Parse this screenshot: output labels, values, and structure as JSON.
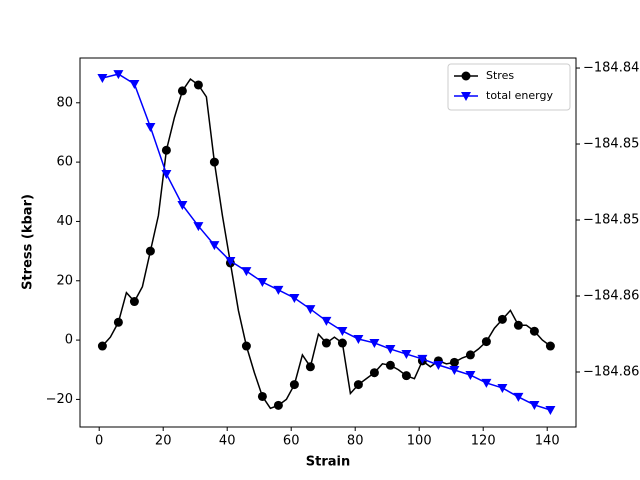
{
  "chart_data": {
    "type": "line",
    "xlabel": "Strain",
    "ylabel": "Stress (kbar)",
    "xlim": [
      -6,
      149
    ],
    "ylim": [
      -29.3,
      95.1
    ],
    "y2lim": [
      -184.86862,
      -184.84434
    ],
    "xticks": [
      0,
      20,
      40,
      60,
      80,
      100,
      120,
      140
    ],
    "yticks": [
      {
        "value": -20,
        "label": "−20"
      },
      0,
      20,
      40,
      60,
      80
    ],
    "y2ticks": [
      {
        "value": -184.845,
        "label": "−184.84"
      },
      {
        "value": -184.85,
        "label": "−184.85"
      },
      {
        "value": -184.855,
        "label": "−184.85"
      },
      {
        "value": -184.86,
        "label": "−184.86"
      },
      {
        "value": -184.865,
        "label": "−184.86"
      }
    ],
    "legend": "upper right",
    "series": [
      {
        "name": "Stres",
        "color": "#000000",
        "marker": "circle",
        "markevery": 2,
        "x": [
          1,
          3.5,
          6,
          8.5,
          11,
          13.5,
          16,
          18.5,
          21,
          23.5,
          26,
          28.5,
          31,
          33.5,
          36,
          38.5,
          41,
          43.5,
          46,
          48.5,
          51,
          53.5,
          56,
          58.5,
          61,
          63.5,
          66,
          68.5,
          71,
          73.5,
          76,
          78.5,
          81,
          83.5,
          86,
          88.5,
          91,
          93.5,
          96,
          98.5,
          101,
          103.5,
          106,
          108.5,
          111,
          113.5,
          116,
          118.5,
          121,
          123.5,
          126,
          128.5,
          131,
          133.5,
          136,
          138.5,
          141
        ],
        "values": [
          -2,
          1,
          6,
          16,
          13,
          18,
          30,
          42,
          64,
          75,
          84,
          88,
          86,
          82,
          60,
          42,
          26,
          10,
          -2,
          -11,
          -19,
          -23,
          -22,
          -20,
          -15,
          -5,
          -9,
          2,
          -1,
          1,
          -1,
          -18,
          -15,
          -13,
          -11,
          -8,
          -8.5,
          -10,
          -12,
          -13,
          -7,
          -9,
          -7,
          -8,
          -7.5,
          -6,
          -5,
          -3,
          -0.5,
          4,
          7,
          10,
          5,
          5,
          3,
          0,
          -2
        ]
      },
      {
        "name": "total energy",
        "color": "#0000ff",
        "marker": "triangle-down",
        "markevery": 1,
        "axis": "y2",
        "x": [
          1,
          6,
          11,
          16,
          21,
          26,
          31,
          36,
          41,
          46,
          51,
          56,
          61,
          66,
          71,
          76,
          81,
          86,
          91,
          96,
          101,
          106,
          111,
          116,
          121,
          126,
          131,
          136,
          141
        ],
        "values": [
          -184.84566,
          -184.8454,
          -184.84605,
          -184.84888,
          -184.85197,
          -184.85401,
          -184.8554,
          -184.85665,
          -184.8577,
          -184.85836,
          -184.85908,
          -184.8596,
          -184.86013,
          -184.86086,
          -184.86164,
          -184.8623,
          -184.86283,
          -184.86309,
          -184.86349,
          -184.86382,
          -184.86414,
          -184.86454,
          -184.86487,
          -184.8652,
          -184.86572,
          -184.86605,
          -184.86664,
          -184.86717,
          -184.8675
        ]
      }
    ]
  }
}
